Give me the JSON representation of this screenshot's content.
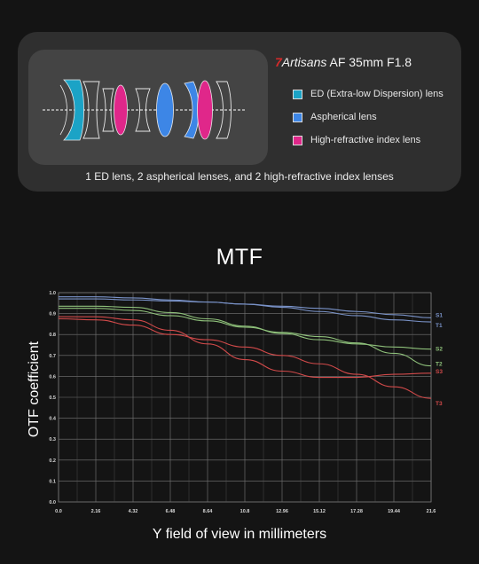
{
  "lens_card": {
    "brand_seven": "7",
    "brand_artisans": "Artisans",
    "brand_model": " AF 35mm F1.8",
    "legend": [
      {
        "label": "ED (Extra-low Dispersion) lens",
        "color": "#1ba3c6"
      },
      {
        "label": "Aspherical lens",
        "color": "#3d86e6"
      },
      {
        "label": "High-refractive index lens",
        "color": "#e0278a"
      }
    ],
    "caption": "1 ED lens, 2 aspherical lenses, and 2 high-refractive index lenses"
  },
  "colors": {
    "background": "#141414",
    "card": "#2f2f2f",
    "lens_panel": "#444444",
    "grid": "#777777",
    "sagittal_blue": "#7a93c9",
    "green": "#8ec07a",
    "red": "#d24a4a"
  },
  "chart_data": {
    "type": "line",
    "title": "MTF",
    "xlabel": "Y field of view in millimeters",
    "ylabel": "OTF coefficient",
    "xlim": [
      0,
      21.6
    ],
    "ylim": [
      0,
      1.0
    ],
    "xticks": [
      "0.0",
      "2.16",
      "4.32",
      "6.48",
      "8.64",
      "10.8",
      "12.96",
      "15.12",
      "17.28",
      "19.44",
      "21.6"
    ],
    "yticks": [
      "0.0",
      "0.1",
      "0.2",
      "0.3",
      "0.4",
      "0.5",
      "0.6",
      "0.7",
      "0.8",
      "0.9",
      "1.0"
    ],
    "grid": true,
    "series": [
      {
        "name": "S1",
        "color": "#7a93c9",
        "x": [
          0,
          2.16,
          4.32,
          6.48,
          8.64,
          10.8,
          12.96,
          15.12,
          17.28,
          19.44,
          21.6
        ],
        "y": [
          0.98,
          0.98,
          0.975,
          0.965,
          0.955,
          0.945,
          0.935,
          0.925,
          0.91,
          0.895,
          0.88
        ]
      },
      {
        "name": "T1",
        "color": "#7a93c9",
        "x": [
          0,
          2.16,
          4.32,
          6.48,
          8.64,
          10.8,
          12.96,
          15.12,
          17.28,
          19.44,
          21.6
        ],
        "y": [
          0.97,
          0.97,
          0.965,
          0.96,
          0.955,
          0.945,
          0.93,
          0.91,
          0.89,
          0.87,
          0.86
        ]
      },
      {
        "name": "S2",
        "color": "#8ec07a",
        "x": [
          0,
          2.16,
          4.32,
          6.48,
          8.64,
          10.8,
          12.96,
          15.12,
          17.28,
          19.44,
          21.6
        ],
        "y": [
          0.935,
          0.935,
          0.93,
          0.905,
          0.875,
          0.84,
          0.805,
          0.775,
          0.755,
          0.74,
          0.73
        ]
      },
      {
        "name": "T2",
        "color": "#8ec07a",
        "x": [
          0,
          2.16,
          4.32,
          6.48,
          8.64,
          10.8,
          12.96,
          15.12,
          17.28,
          19.44,
          21.6
        ],
        "y": [
          0.925,
          0.925,
          0.915,
          0.89,
          0.865,
          0.835,
          0.81,
          0.79,
          0.76,
          0.71,
          0.65
        ]
      },
      {
        "name": "S3",
        "color": "#d24a4a",
        "x": [
          0,
          2.16,
          4.32,
          6.48,
          8.64,
          10.8,
          12.96,
          15.12,
          17.28,
          19.44,
          21.6
        ],
        "y": [
          0.885,
          0.885,
          0.87,
          0.82,
          0.755,
          0.68,
          0.625,
          0.595,
          0.595,
          0.61,
          0.615
        ]
      },
      {
        "name": "T3",
        "color": "#d24a4a",
        "x": [
          0,
          2.16,
          4.32,
          6.48,
          8.64,
          10.8,
          12.96,
          15.12,
          17.28,
          19.44,
          21.6
        ],
        "y": [
          0.875,
          0.87,
          0.845,
          0.8,
          0.775,
          0.74,
          0.7,
          0.66,
          0.61,
          0.55,
          0.495
        ]
      }
    ]
  }
}
